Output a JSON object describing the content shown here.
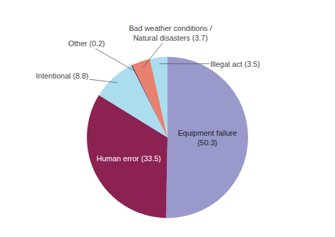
{
  "chart_data": {
    "type": "pie",
    "values": [
      50.3,
      33.5,
      8.8,
      0.2,
      3.7,
      3.5
    ],
    "value_labels": [
      "Equipment failure\n(50.3)",
      "Human error (33.5)",
      "Intentional (8.8)",
      "Other (0.2)",
      "Bad weather conditions /\nNatural disasters (3.7)",
      "Illegal act (3.5)"
    ],
    "colors": [
      "#9999cc",
      "#8b2252",
      "#aaddee",
      "#6b1a5a",
      "#e8826e",
      "#aaddee"
    ],
    "data_labels": true
  }
}
